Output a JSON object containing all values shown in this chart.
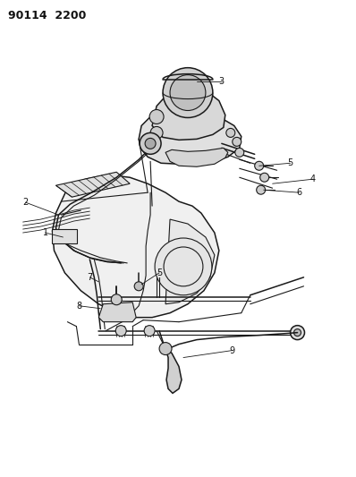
{
  "title_code": "90114  2200",
  "background_color": "#ffffff",
  "line_color": "#1a1a1a",
  "label_color": "#111111",
  "fig_width": 3.98,
  "fig_height": 5.33,
  "dpi": 100
}
